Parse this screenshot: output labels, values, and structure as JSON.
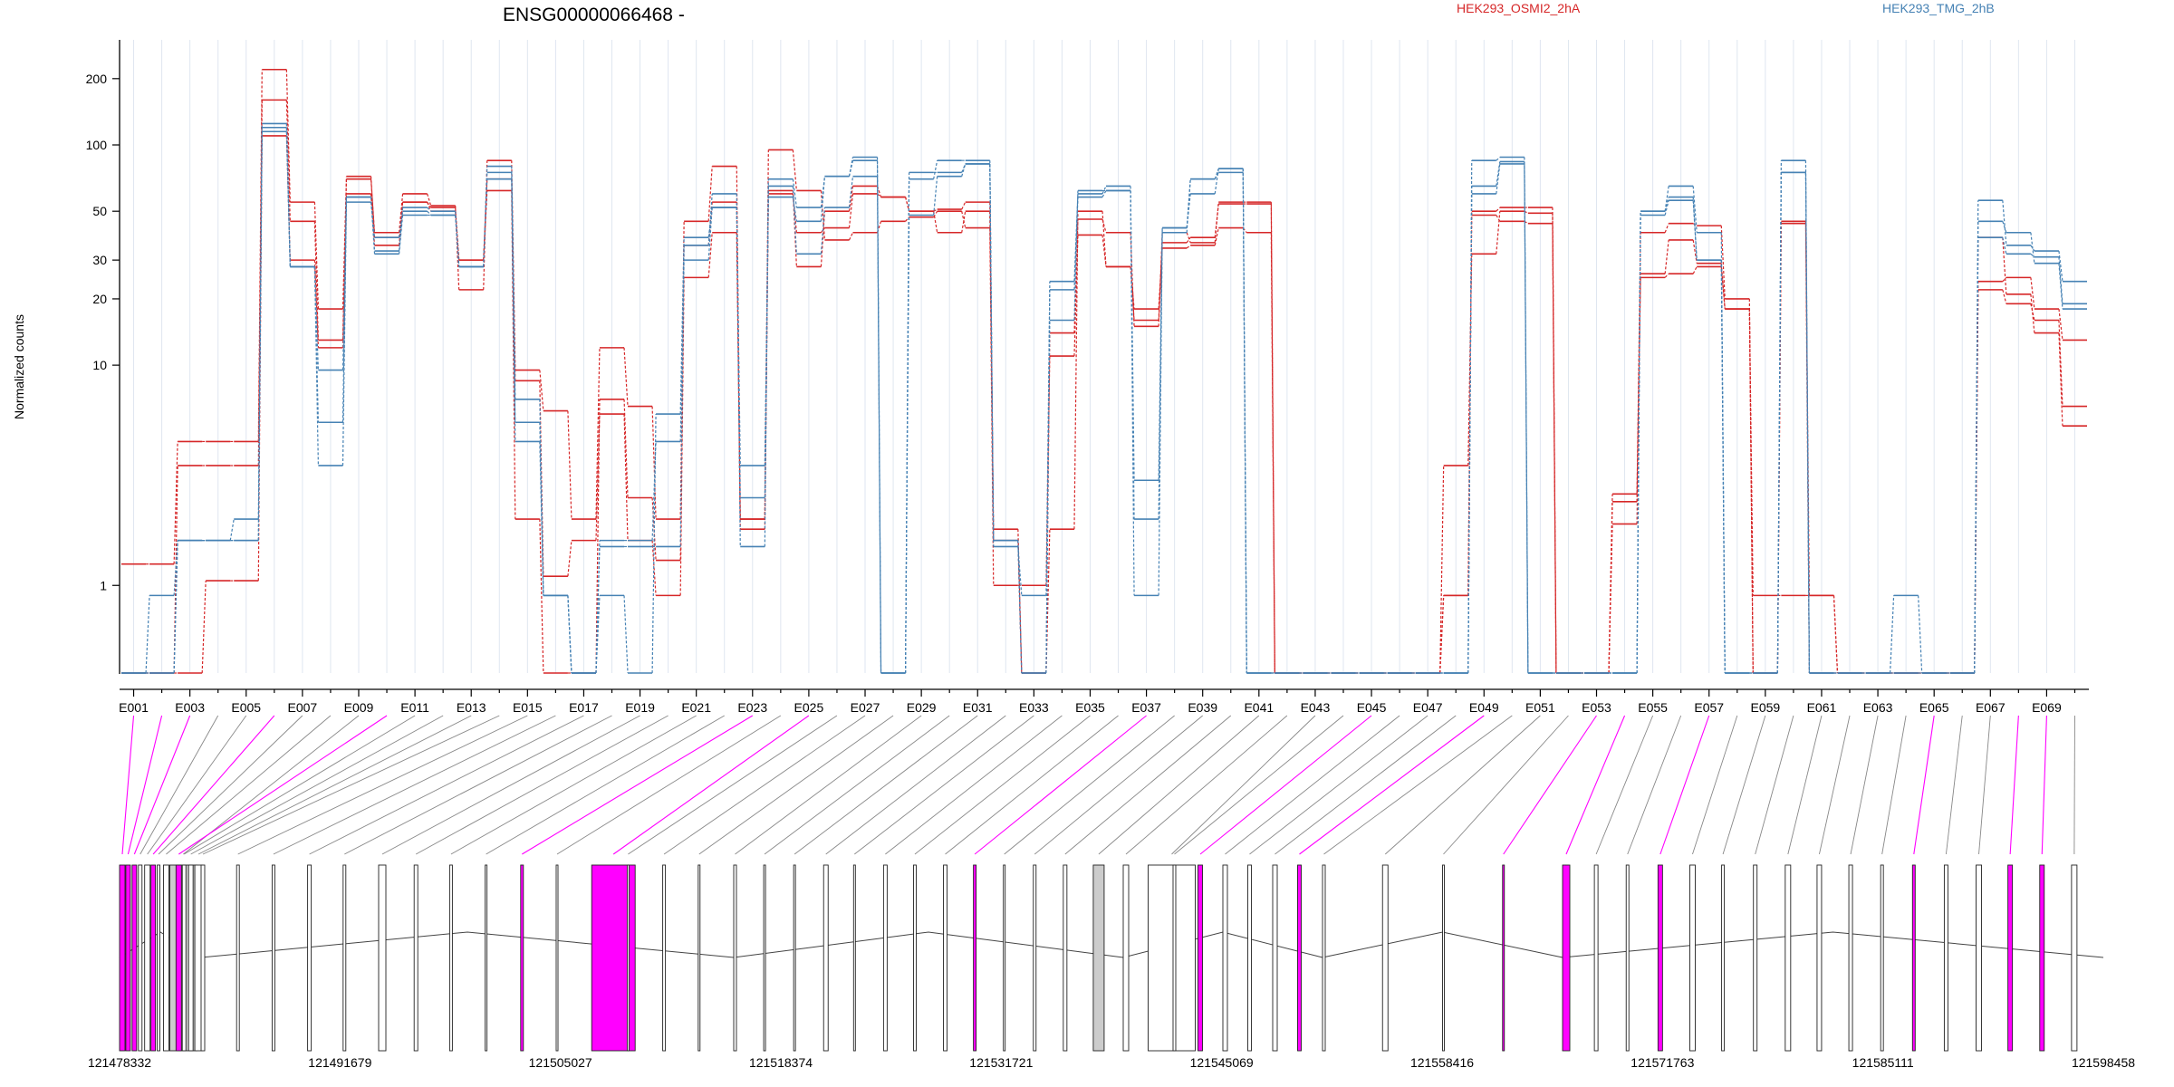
{
  "chart_data": {
    "type": "line",
    "title": "ENSG00000066468 -",
    "ylabel": "Normalized counts",
    "yscale": "log",
    "ylim": [
      0.4,
      300
    ],
    "yticks": [
      1,
      10,
      20,
      30,
      50,
      100,
      200
    ],
    "legend": "top, horizontal",
    "grid": "vertical, x only",
    "exons": [
      "E001",
      "E002",
      "E003",
      "E004",
      "E005",
      "E006",
      "E007",
      "E008",
      "E009",
      "E010",
      "E011",
      "E012",
      "E013",
      "E014",
      "E015",
      "E016",
      "E017",
      "E018",
      "E019",
      "E020",
      "E021",
      "E022",
      "E023",
      "E024",
      "E025",
      "E026",
      "E027",
      "E028",
      "E029",
      "E030",
      "E031",
      "E032",
      "E033",
      "E034",
      "E035",
      "E036",
      "E037",
      "E038",
      "E039",
      "E040",
      "E041",
      "E042",
      "E043",
      "E044",
      "E045",
      "E046",
      "E047",
      "E048",
      "E049",
      "E050",
      "E051",
      "E052",
      "E053",
      "E054",
      "E055",
      "E056",
      "E057",
      "E058",
      "E059",
      "E060",
      "E061",
      "E062",
      "E063",
      "E064",
      "E065",
      "E066",
      "E067",
      "E068",
      "E069",
      "E070"
    ],
    "x_tick_labels": [
      "E001",
      "E003",
      "E005",
      "E007",
      "E009",
      "E011",
      "E013",
      "E015",
      "E017",
      "E019",
      "E021",
      "E023",
      "E025",
      "E027",
      "E029",
      "E031",
      "E033",
      "E035",
      "E037",
      "E039",
      "E041",
      "E043",
      "E045",
      "E047",
      "E049",
      "E051",
      "E053",
      "E055",
      "E057",
      "E059",
      "E061",
      "E063",
      "E065",
      "E067",
      "E069"
    ],
    "genomic_ticks": [
      "121478332",
      "121491679",
      "121505027",
      "121518374",
      "121531721",
      "121545069",
      "121558416",
      "121571763",
      "121585111",
      "121598458"
    ],
    "series": [
      {
        "name": "HEK293_OSMI2_2hA",
        "color": "#d62728",
        "values": [
          1.25,
          1.25,
          4.5,
          4.5,
          4.5,
          220,
          55,
          18,
          70,
          40,
          60,
          53,
          22,
          85,
          9.5,
          6.2,
          2,
          12,
          6.5,
          2,
          45,
          80,
          2,
          95,
          62,
          37,
          40,
          45,
          47,
          50,
          42,
          1,
          1,
          11,
          39,
          28,
          18,
          34,
          35,
          42,
          40,
          0.4,
          0.4,
          0.4,
          0.4,
          0.4,
          0.4,
          3.5,
          32,
          50,
          49,
          0.4,
          0.4,
          2.6,
          25,
          26,
          28,
          18,
          0.9,
          0.9,
          0.9,
          0.4,
          0.4,
          0.4,
          0.4,
          0.4,
          22,
          19,
          16,
          6.5
        ]
      },
      {
        "name": "HEK293_OSMI2_2hA",
        "color": "#d62728",
        "values": [
          0.4,
          0.4,
          3.5,
          3.5,
          3.5,
          160,
          45,
          13,
          72,
          38,
          55,
          50,
          30,
          62,
          2,
          0.4,
          0.4,
          7,
          2.5,
          1.3,
          35,
          55,
          1.8,
          60,
          40,
          42,
          60,
          58,
          50,
          40,
          50,
          1.8,
          0.4,
          1.8,
          50,
          28,
          16,
          36,
          38,
          54,
          54,
          0.4,
          0.4,
          0.4,
          0.4,
          0.4,
          0.4,
          0.9,
          48,
          45,
          44,
          0.4,
          0.4,
          2.4,
          40,
          44,
          43,
          20,
          0.4,
          44,
          0.4,
          0.4,
          0.4,
          0.4,
          0.4,
          0.4,
          24,
          25,
          18,
          13
        ]
      },
      {
        "name": "HEK293_OSMI2_2hA",
        "color": "#d62728",
        "values": [
          0.4,
          0.4,
          0.4,
          1.05,
          1.05,
          110,
          30,
          12,
          60,
          35,
          55,
          52,
          30,
          70,
          8.5,
          1.1,
          1.6,
          6,
          1.6,
          0.9,
          25,
          40,
          2,
          62,
          28,
          50,
          65,
          58,
          50,
          51,
          55,
          1.6,
          0.4,
          14,
          46,
          40,
          15,
          40,
          36,
          55,
          55,
          0.4,
          0.4,
          0.4,
          0.4,
          0.4,
          0.4,
          0.9,
          50,
          52,
          52,
          0.4,
          0.4,
          1.9,
          26,
          37,
          29,
          18,
          0.4,
          45,
          0.9,
          0.4,
          0.4,
          0.4,
          0.4,
          0.4,
          38,
          21,
          14,
          5.3
        ]
      },
      {
        "name": "HEK293_TMG_2hB",
        "color": "#4682b4",
        "values": [
          0.4,
          0.9,
          1.6,
          1.6,
          1.6,
          125,
          28,
          9.5,
          58,
          33,
          52,
          50,
          28,
          80,
          7,
          0.9,
          0.4,
          1.5,
          1.5,
          1.5,
          35,
          60,
          2.5,
          70,
          52,
          72,
          88,
          0.4,
          70,
          85,
          85,
          1.6,
          0.4,
          24,
          60,
          65,
          2,
          40,
          70,
          78,
          0.4,
          0.4,
          0.4,
          0.4,
          0.4,
          0.4,
          0.4,
          0.4,
          85,
          88,
          0.4,
          0.4,
          0.4,
          0.4,
          50,
          65,
          40,
          0.4,
          0.4,
          85,
          0.4,
          0.4,
          0.4,
          0.9,
          0.4,
          0.4,
          56,
          35,
          33,
          24
        ]
      },
      {
        "name": "HEK293_TMG_2hB",
        "color": "#4682b4",
        "values": [
          0.4,
          0.4,
          1.6,
          1.6,
          2,
          120,
          28,
          5.5,
          58,
          32,
          48,
          48,
          28,
          75,
          5.5,
          0.9,
          0.4,
          0.9,
          0.4,
          6,
          38,
          52,
          1.5,
          65,
          32,
          52,
          72,
          0.4,
          75,
          75,
          82,
          1.5,
          0.9,
          22,
          58,
          62,
          0.9,
          42,
          70,
          75,
          0.4,
          0.4,
          0.4,
          0.4,
          0.4,
          0.4,
          0.4,
          0.4,
          65,
          84,
          0.4,
          0.4,
          0.4,
          0.4,
          50,
          58,
          30,
          0.4,
          0.4,
          75,
          0.4,
          0.4,
          0.4,
          0.4,
          0.4,
          0.4,
          45,
          40,
          29,
          18
        ]
      },
      {
        "name": "HEK293_TMG_2hB",
        "color": "#4682b4",
        "values": [
          0.4,
          0.4,
          1.6,
          1.6,
          1.6,
          115,
          28,
          3.5,
          55,
          38,
          50,
          48,
          28,
          70,
          4.5,
          0.9,
          0.4,
          1.6,
          1.6,
          4.5,
          30,
          52,
          3.5,
          58,
          45,
          72,
          85,
          0.4,
          48,
          72,
          82,
          1.6,
          0.4,
          16,
          62,
          62,
          3,
          42,
          60,
          78,
          0.4,
          0.4,
          0.4,
          0.4,
          0.4,
          0.4,
          0.4,
          0.4,
          60,
          82,
          0.4,
          0.4,
          0.4,
          0.4,
          48,
          56,
          30,
          0.4,
          0.4,
          75,
          0.4,
          0.4,
          0.4,
          0.4,
          0.4,
          0.4,
          38,
          32,
          31,
          19
        ]
      }
    ]
  },
  "transcript_model": {
    "color_alternative": "#ff00ff",
    "color_intron_line": "#444444",
    "color_shaded_exon": "#cccccc"
  }
}
